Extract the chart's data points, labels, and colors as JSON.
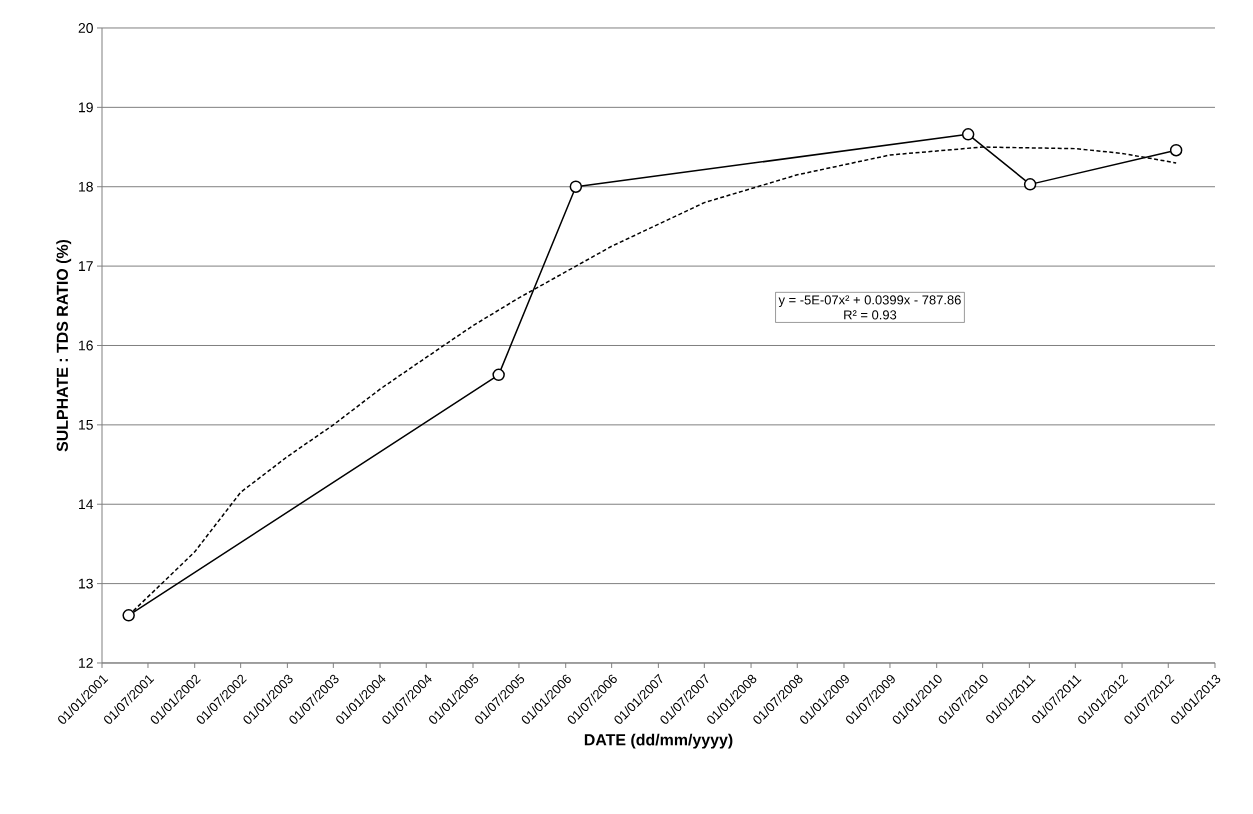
{
  "chart_data": {
    "type": "line",
    "xlabel": "DATE  (dd/mm/yyyy)",
    "ylabel": "SULPHATE : TDS RATIO  (%)",
    "annotations": [
      "y = -5E-07x² + 0.0399x - 787.86",
      "R² = 0.93"
    ],
    "series": [
      {
        "color": "#000000",
        "marker": "circle",
        "line_style": "solid",
        "x": [
          "2001-04-16",
          "2005-04-12",
          "2006-02-10",
          "2010-05-05",
          "2011-01-04",
          "2012-08-01"
        ],
        "values": [
          12.6,
          15.63,
          18.0,
          18.66,
          18.03,
          18.46
        ]
      },
      {
        "type": "line",
        "color": "#000000",
        "marker": "none",
        "line_style": "dashed",
        "x": [
          "2001-04-16",
          "2002-01-01",
          "2002-07-01",
          "2003-01-01",
          "2003-07-01",
          "2004-01-01",
          "2004-07-01",
          "2005-01-01",
          "2005-07-01",
          "2006-07-01",
          "2007-07-01",
          "2008-07-01",
          "2009-07-01",
          "2010-07-01",
          "2011-07-01",
          "2012-01-01",
          "2012-08-01"
        ],
        "values": [
          12.6,
          13.4,
          14.15,
          14.6,
          15.0,
          15.45,
          15.85,
          16.25,
          16.6,
          17.25,
          17.8,
          18.15,
          18.4,
          18.5,
          18.48,
          18.42,
          18.3
        ]
      }
    ],
    "xlim": [
      "2001-01-01",
      "2013-01-01"
    ],
    "xticks": [
      {
        "value": "2001-01-01",
        "label": "01/01/2001"
      },
      {
        "value": "2001-07-01",
        "label": "01/07/2001"
      },
      {
        "value": "2002-01-01",
        "label": "01/01/2002"
      },
      {
        "value": "2002-07-01",
        "label": "01/07/2002"
      },
      {
        "value": "2003-01-01",
        "label": "01/01/2003"
      },
      {
        "value": "2003-07-01",
        "label": "01/07/2003"
      },
      {
        "value": "2004-01-01",
        "label": "01/01/2004"
      },
      {
        "value": "2004-07-01",
        "label": "01/07/2004"
      },
      {
        "value": "2005-01-01",
        "label": "01/01/2005"
      },
      {
        "value": "2005-07-01",
        "label": "01/07/2005"
      },
      {
        "value": "2006-01-01",
        "label": "01/01/2006"
      },
      {
        "value": "2006-07-01",
        "label": "01/07/2006"
      },
      {
        "value": "2007-01-01",
        "label": "01/01/2007"
      },
      {
        "value": "2007-07-01",
        "label": "01/07/2007"
      },
      {
        "value": "2008-01-01",
        "label": "01/01/2008"
      },
      {
        "value": "2008-07-01",
        "label": "01/07/2008"
      },
      {
        "value": "2009-01-01",
        "label": "01/01/2009"
      },
      {
        "value": "2009-07-01",
        "label": "01/07/2009"
      },
      {
        "value": "2010-01-01",
        "label": "01/01/2010"
      },
      {
        "value": "2010-07-01",
        "label": "01/07/2010"
      },
      {
        "value": "2011-01-01",
        "label": "01/01/2011"
      },
      {
        "value": "2011-07-01",
        "label": "01/07/2011"
      },
      {
        "value": "2012-01-01",
        "label": "01/01/2012"
      },
      {
        "value": "2012-07-01",
        "label": "01/07/2012"
      },
      {
        "value": "2013-01-01",
        "label": "01/01/2013"
      }
    ],
    "ylim": [
      12,
      20
    ],
    "yticks": [
      12,
      13,
      14,
      15,
      16,
      17,
      18,
      19,
      20
    ],
    "grid": "y"
  }
}
